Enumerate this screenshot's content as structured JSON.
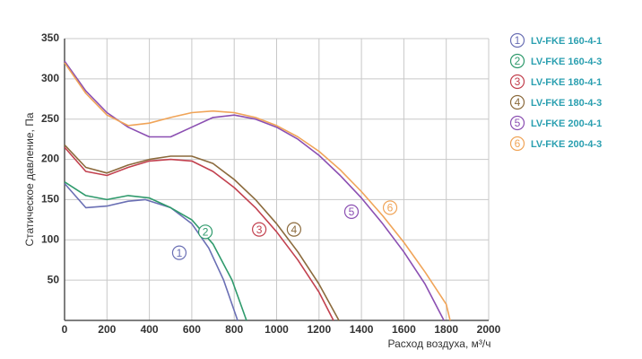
{
  "chart_data": {
    "type": "line",
    "x_label": "Расход воздуха, м³/ч",
    "y_label": "Статическое давление, Па",
    "xlim": [
      0,
      2000
    ],
    "xticks": [
      0,
      200,
      400,
      600,
      800,
      1000,
      1200,
      1400,
      1600,
      1800,
      2000
    ],
    "ylim": [
      0,
      350
    ],
    "yticks": [
      50,
      100,
      150,
      200,
      250,
      300,
      350
    ],
    "grid": true,
    "series": [
      {
        "name": "LV-FKE 160-4-1",
        "color": "#6a6fb4",
        "x": [
          0,
          100,
          200,
          300,
          380,
          500,
          600,
          680,
          750,
          816
        ],
        "values": [
          170,
          140,
          142,
          148,
          150,
          140,
          120,
          90,
          50,
          0
        ]
      },
      {
        "name": "LV-FKE 160-4-3",
        "color": "#2f9a6c",
        "x": [
          0,
          100,
          200,
          300,
          400,
          500,
          600,
          700,
          790,
          858
        ],
        "values": [
          172,
          155,
          150,
          155,
          152,
          140,
          125,
          95,
          50,
          0
        ]
      },
      {
        "name": "LV-FKE 180-4-1",
        "color": "#c2404e",
        "x": [
          0,
          100,
          200,
          300,
          400,
          500,
          600,
          700,
          800,
          900,
          1000,
          1100,
          1200,
          1268
        ],
        "values": [
          215,
          185,
          180,
          190,
          198,
          200,
          198,
          185,
          165,
          140,
          110,
          75,
          35,
          0
        ]
      },
      {
        "name": "LV-FKE 180-4-3",
        "color": "#8b6a3c",
        "x": [
          0,
          100,
          200,
          300,
          400,
          500,
          600,
          700,
          800,
          900,
          1000,
          1100,
          1200,
          1294
        ],
        "values": [
          218,
          190,
          183,
          193,
          200,
          204,
          204,
          195,
          175,
          150,
          120,
          85,
          45,
          0
        ]
      },
      {
        "name": "LV-FKE 200-4-1",
        "color": "#8b4fb2",
        "x": [
          0,
          100,
          200,
          300,
          400,
          500,
          600,
          700,
          800,
          900,
          1000,
          1100,
          1200,
          1300,
          1400,
          1500,
          1600,
          1700,
          1789
        ],
        "values": [
          322,
          285,
          258,
          240,
          228,
          228,
          240,
          252,
          255,
          250,
          240,
          225,
          205,
          180,
          152,
          120,
          85,
          45,
          0
        ]
      },
      {
        "name": "LV-FKE 200-4-3",
        "color": "#f0a458",
        "x": [
          0,
          100,
          200,
          300,
          400,
          500,
          600,
          700,
          800,
          900,
          1000,
          1100,
          1200,
          1300,
          1400,
          1500,
          1600,
          1700,
          1800,
          1818
        ],
        "values": [
          320,
          282,
          255,
          242,
          245,
          252,
          258,
          260,
          258,
          252,
          242,
          228,
          210,
          187,
          160,
          130,
          97,
          60,
          20,
          0
        ]
      }
    ],
    "annotations": [
      {
        "text": "1",
        "x": 541,
        "y": 84
      },
      {
        "text": "2",
        "x": 664,
        "y": 110
      },
      {
        "text": "3",
        "x": 918,
        "y": 113
      },
      {
        "text": "4",
        "x": 1082,
        "y": 113
      },
      {
        "text": "5",
        "x": 1353,
        "y": 135
      },
      {
        "text": "6",
        "x": 1535,
        "y": 140
      }
    ]
  }
}
